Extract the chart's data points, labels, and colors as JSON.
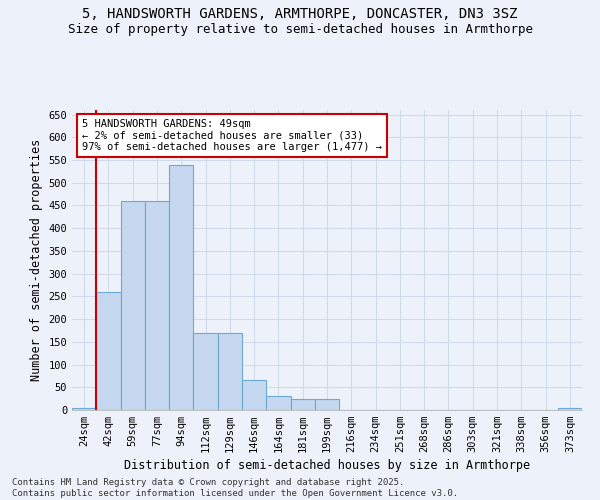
{
  "title": "5, HANDSWORTH GARDENS, ARMTHORPE, DONCASTER, DN3 3SZ",
  "subtitle": "Size of property relative to semi-detached houses in Armthorpe",
  "xlabel": "Distribution of semi-detached houses by size in Armthorpe",
  "ylabel": "Number of semi-detached properties",
  "categories": [
    "24sqm",
    "42sqm",
    "59sqm",
    "77sqm",
    "94sqm",
    "112sqm",
    "129sqm",
    "146sqm",
    "164sqm",
    "181sqm",
    "199sqm",
    "216sqm",
    "234sqm",
    "251sqm",
    "268sqm",
    "286sqm",
    "303sqm",
    "321sqm",
    "338sqm",
    "356sqm",
    "373sqm"
  ],
  "values": [
    5,
    260,
    460,
    460,
    540,
    170,
    170,
    65,
    30,
    25,
    25,
    0,
    0,
    0,
    0,
    0,
    0,
    0,
    0,
    0,
    5
  ],
  "bar_color": "#c5d8ef",
  "bar_edge_color": "#6aaad4",
  "vline_x": 1.5,
  "vline_color": "#cc0000",
  "annotation_text": "5 HANDSWORTH GARDENS: 49sqm\n← 2% of semi-detached houses are smaller (33)\n97% of semi-detached houses are larger (1,477) →",
  "annotation_box_color": "#ffffff",
  "annotation_box_edge": "#cc0000",
  "ylim": [
    0,
    660
  ],
  "yticks": [
    0,
    50,
    100,
    150,
    200,
    250,
    300,
    350,
    400,
    450,
    500,
    550,
    600,
    650
  ],
  "bg_color": "#edf2fa",
  "grid_color": "#d0daea",
  "footer": "Contains HM Land Registry data © Crown copyright and database right 2025.\nContains public sector information licensed under the Open Government Licence v3.0.",
  "title_fontsize": 10,
  "subtitle_fontsize": 9,
  "axis_label_fontsize": 8.5,
  "tick_fontsize": 7.5,
  "footer_fontsize": 6.5,
  "annotation_fontsize": 7.5
}
